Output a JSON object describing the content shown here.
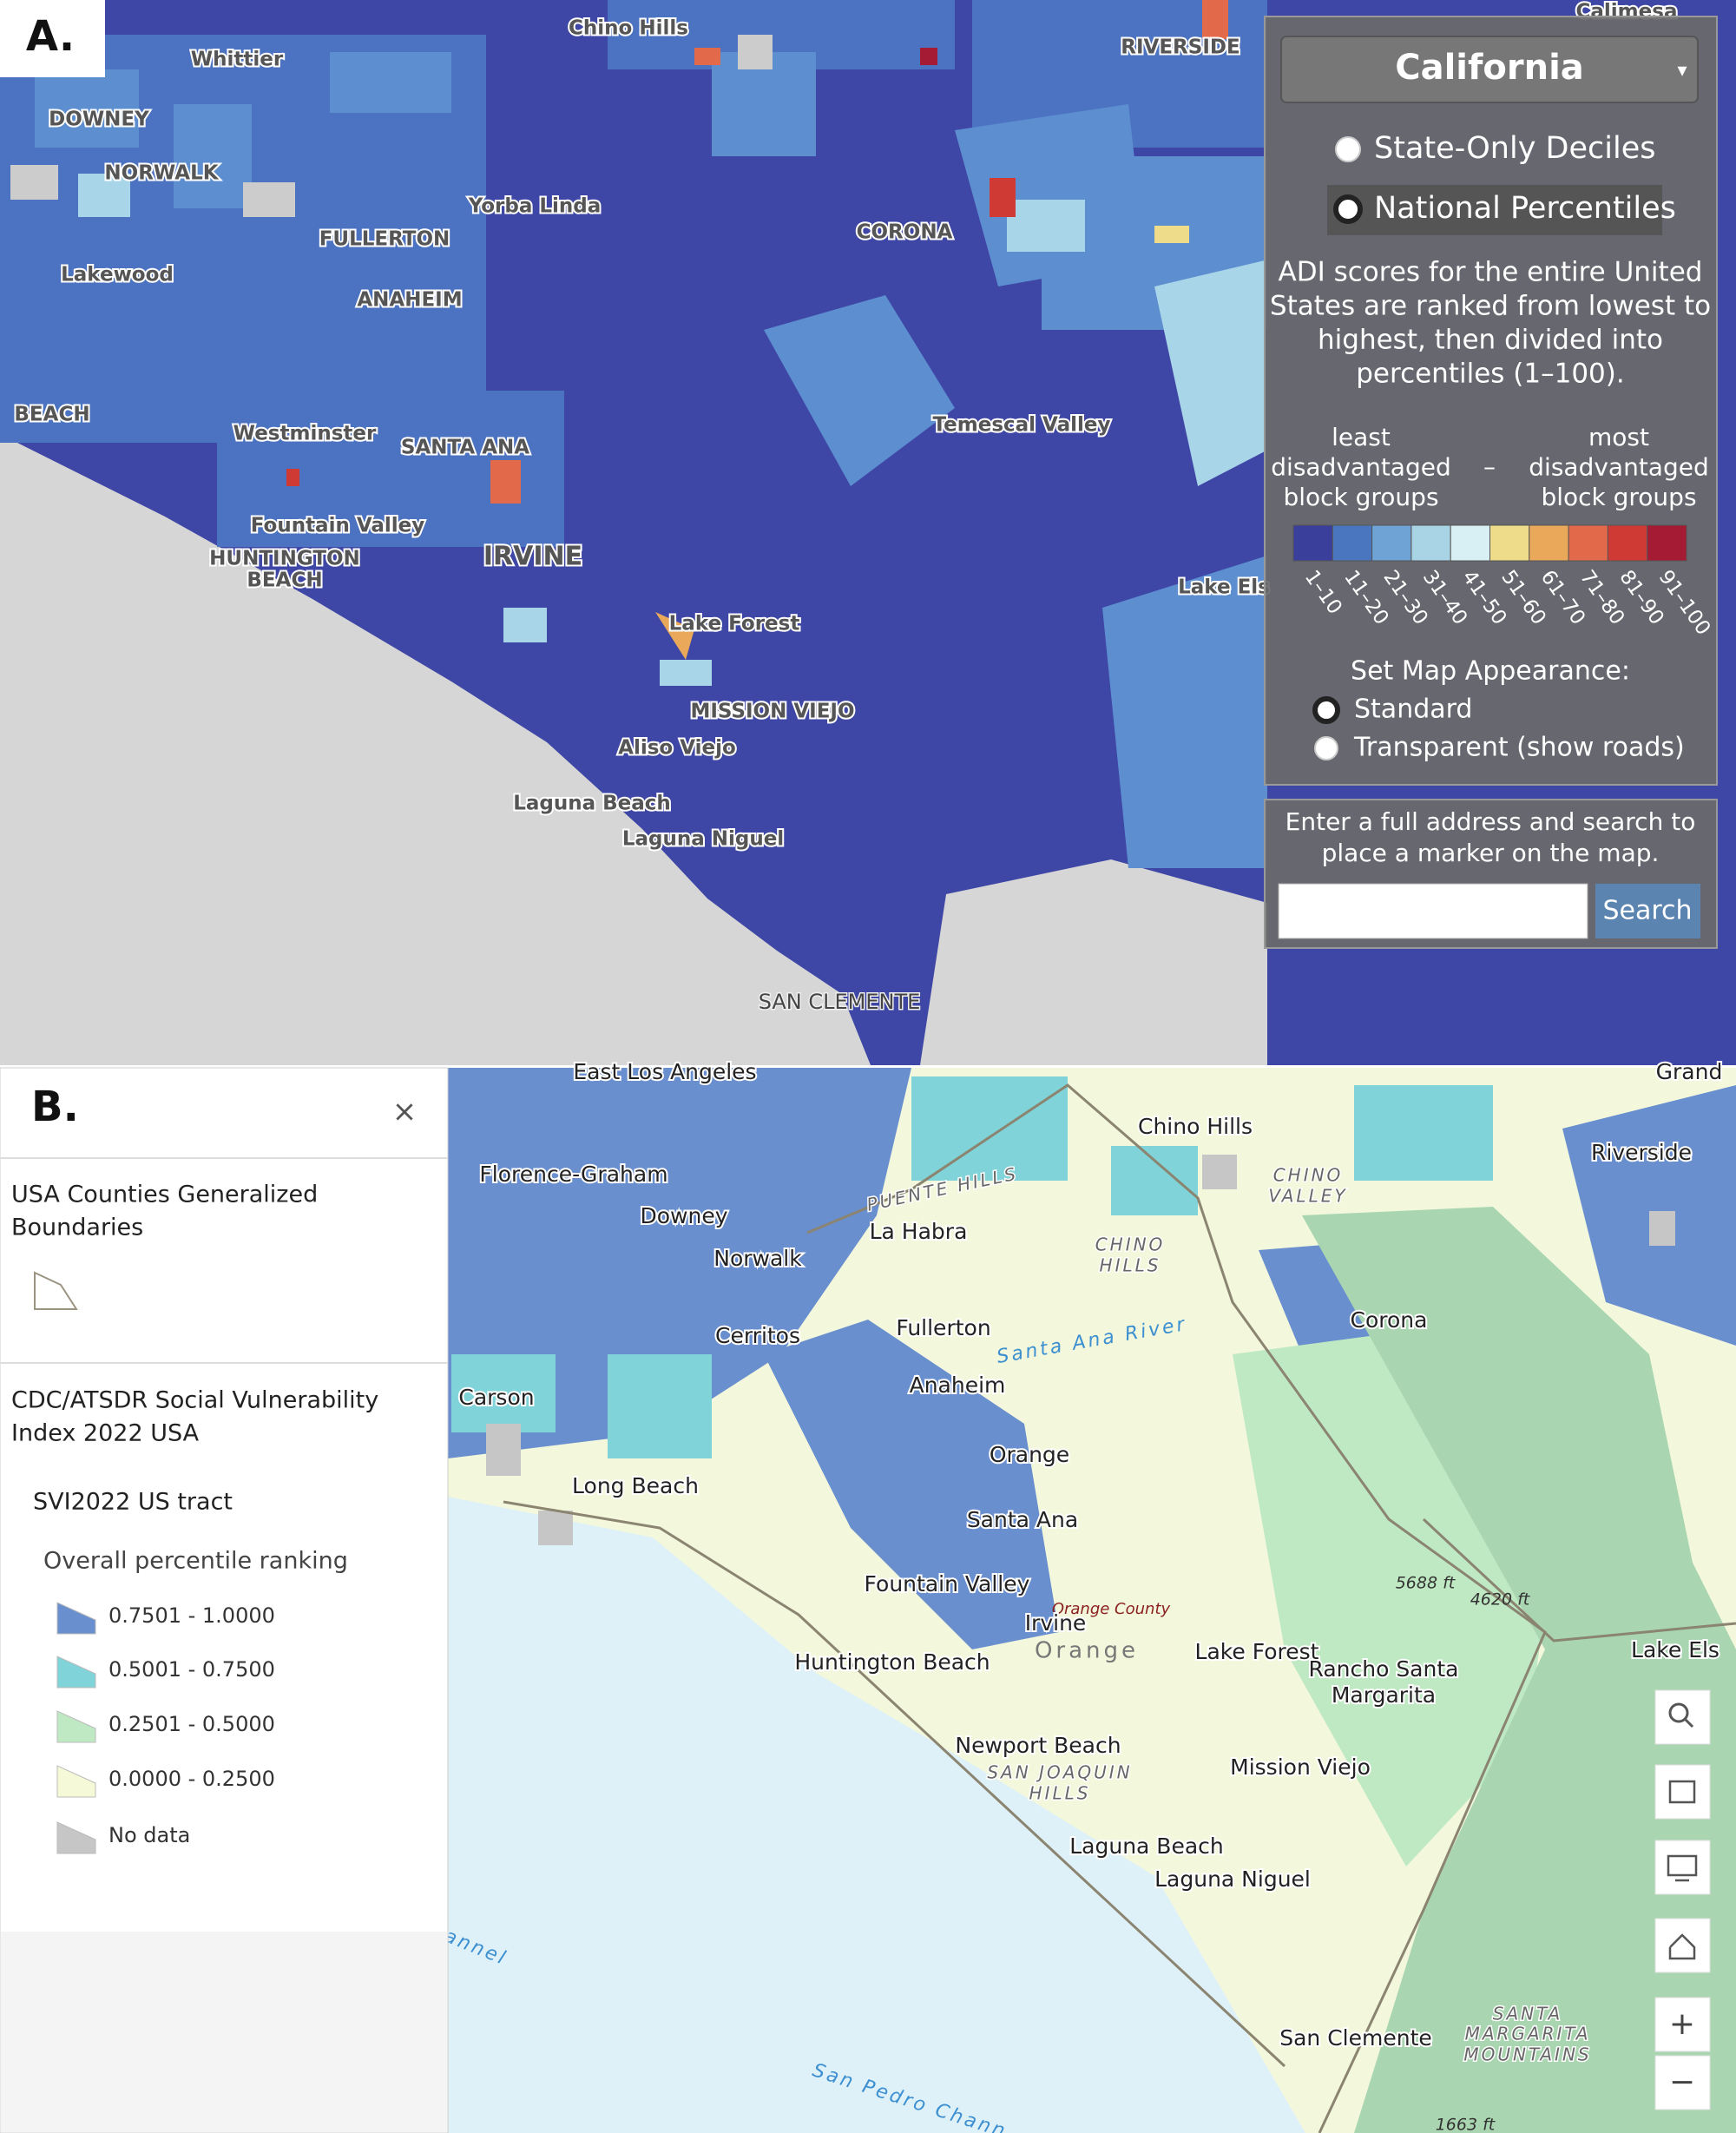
{
  "panel_a": {
    "label": "A.",
    "places": [
      "Chino Hills",
      "Whittier",
      "RIVERSIDE",
      "Calimesa",
      "DOWNEY",
      "NORWALK",
      "Yorba Linda",
      "FULLERTON",
      "CORONA",
      "Lakewood",
      "ANAHEIM",
      "BEACH",
      "Westminster",
      "SANTA ANA",
      "Temescal Valley",
      "Fountain Valley",
      "HUNTINGTON",
      "BEACH",
      "IRVINE",
      "Lake Forest",
      "Lake Els",
      "MISSION VIEJO",
      "Aliso Viejo",
      "Laguna Beach",
      "Laguna Niguel",
      "SAN CLEMENTE"
    ],
    "controls": {
      "region": "California",
      "dropdown_arrow": "▾",
      "scale_options": [
        "State-Only Deciles",
        "National Percentiles"
      ],
      "description": [
        "ADI scores for the entire United",
        "States are ranked from lowest to",
        "highest, then divided into",
        "percentiles (1–100)."
      ],
      "legend": {
        "low_label": [
          "least",
          "disadvantaged",
          "block groups"
        ],
        "separator": "–",
        "high_label": [
          "most",
          "disadvantaged",
          "block groups"
        ],
        "bins": [
          {
            "label": "1–10",
            "color": "#3b3f9c"
          },
          {
            "label": "11–20",
            "color": "#4a76c0"
          },
          {
            "label": "21–30",
            "color": "#6fa3d6"
          },
          {
            "label": "31–40",
            "color": "#a8d4e6"
          },
          {
            "label": "41–50",
            "color": "#d8f0f4"
          },
          {
            "label": "51–60",
            "color": "#eedc8a"
          },
          {
            "label": "61–70",
            "color": "#e9a85a"
          },
          {
            "label": "71–80",
            "color": "#e2694a"
          },
          {
            "label": "81–90",
            "color": "#d03a35"
          },
          {
            "label": "91–100",
            "color": "#a61b34"
          }
        ]
      },
      "appearance_title": "Set Map Appearance:",
      "appearance_options": [
        "Standard",
        "Transparent (show roads)"
      ],
      "search_prompt": [
        "Enter a full address and search to",
        "place a marker on the map."
      ],
      "search_button": "Search"
    }
  },
  "panel_b": {
    "label": "B.",
    "close": "×",
    "layers": {
      "counties_title": [
        "USA Counties Generalized",
        "Boundaries"
      ],
      "svi_title": [
        "CDC/ATSDR Social Vulnerability",
        "Index 2022 USA"
      ],
      "sublayer": "SVI2022 US tract",
      "field": "Overall percentile ranking",
      "classes": [
        {
          "label": "0.7501 - 1.0000",
          "color": "#6a8fcf"
        },
        {
          "label": "0.5001 - 0.7500",
          "color": "#80d3d8"
        },
        {
          "label": "0.2501 - 0.5000",
          "color": "#bfe9c3"
        },
        {
          "label": "0.0000 - 0.2500",
          "color": "#f6f9d8"
        },
        {
          "label": "No data",
          "color": "#c6c6c6"
        }
      ]
    },
    "places": [
      "East Los Angeles",
      "Grand",
      "Chino Hills",
      "Florence-Graham",
      "Riverside",
      "CHINO",
      "VALLEY",
      "PUENTE HILLS",
      "Downey",
      "La Habra",
      "CHINO",
      "HILLS",
      "Norwalk",
      "Corona",
      "Cerritos",
      "Fullerton",
      "Santa Ana River",
      "Carson",
      "Anaheim",
      "Orange",
      "Long Beach",
      "Santa Ana",
      "Fountain Valley",
      "Orange County",
      "Irvine",
      "Orange",
      "5688 ft",
      "4620 ft",
      "Lake Forest",
      "Rancho Santa",
      "Margarita",
      "Lake Els",
      "Huntington Beach",
      "Newport Beach",
      "SAN JOAQUIN",
      "HILLS",
      "Mission Viejo",
      "Laguna Beach",
      "Laguna Niguel",
      "annel",
      "San Clemente",
      "SANTA",
      "MARGARITA",
      "MOUNTAINS",
      "San Pedro Chann",
      "1663 ft"
    ],
    "zoom_in": "+",
    "zoom_out": "−"
  }
}
